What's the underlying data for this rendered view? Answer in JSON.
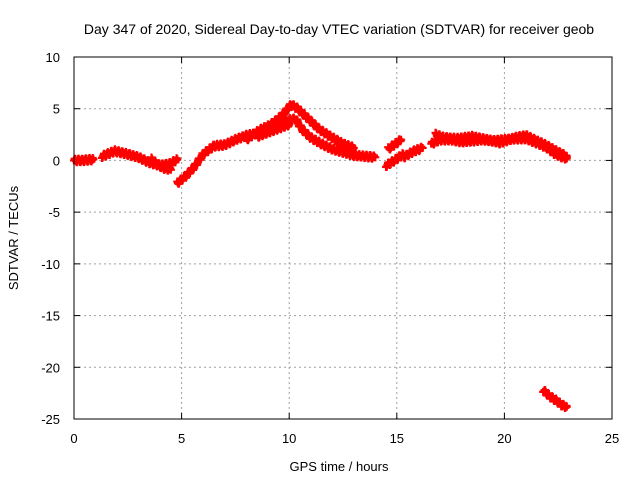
{
  "chart_data": {
    "type": "scatter",
    "title": "Day 347 of 2020, Sidereal Day-to-day VTEC variation (SDTVAR) for receiver geob",
    "xlabel": "GPS time / hours",
    "ylabel": "SDTVAR / TECUs",
    "xlim": [
      0,
      25
    ],
    "ylim": [
      -25,
      10
    ],
    "xticks": [
      0,
      5,
      10,
      15,
      20,
      25
    ],
    "yticks": [
      -25,
      -20,
      -15,
      -10,
      -5,
      0,
      5,
      10
    ],
    "grid": true,
    "marker_color": "#ff0000",
    "series": [
      {
        "name": "SDTVAR",
        "segments": [
          [
            [
              0.0,
              0.0
            ],
            [
              0.4,
              0.0
            ],
            [
              0.9,
              0.1
            ]
          ],
          [
            [
              1.3,
              0.4
            ],
            [
              1.9,
              0.9
            ],
            [
              2.5,
              0.6
            ],
            [
              3.0,
              0.3
            ],
            [
              3.5,
              -0.2
            ],
            [
              4.0,
              -0.5
            ],
            [
              4.5,
              -0.3
            ],
            [
              4.8,
              0.1
            ]
          ],
          [
            [
              3.6,
              0.1
            ],
            [
              4.1,
              -0.7
            ],
            [
              4.5,
              -0.9
            ]
          ],
          [
            [
              4.8,
              -2.2
            ],
            [
              5.2,
              -1.5
            ],
            [
              5.6,
              -0.6
            ],
            [
              6.0,
              0.6
            ],
            [
              6.5,
              1.4
            ],
            [
              7.0,
              1.5
            ],
            [
              7.5,
              2.0
            ],
            [
              8.0,
              2.4
            ],
            [
              8.5,
              2.6
            ],
            [
              9.0,
              3.0
            ],
            [
              9.5,
              3.5
            ],
            [
              10.0,
              3.9
            ],
            [
              10.3,
              4.0
            ],
            [
              10.6,
              3.0
            ],
            [
              11.0,
              2.2
            ],
            [
              11.5,
              1.6
            ],
            [
              12.0,
              1.1
            ],
            [
              12.5,
              0.8
            ],
            [
              13.0,
              0.5
            ],
            [
              13.5,
              0.4
            ],
            [
              14.0,
              0.3
            ]
          ],
          [
            [
              8.0,
              2.0
            ],
            [
              8.6,
              2.9
            ],
            [
              9.1,
              3.4
            ],
            [
              9.6,
              4.2
            ],
            [
              10.1,
              5.4
            ],
            [
              10.4,
              5.0
            ],
            [
              10.9,
              4.0
            ],
            [
              11.4,
              3.0
            ],
            [
              12.0,
              2.2
            ],
            [
              12.5,
              1.6
            ],
            [
              13.0,
              1.2
            ]
          ],
          [
            [
              8.5,
              2.3
            ],
            [
              9.0,
              2.7
            ],
            [
              9.5,
              3.1
            ],
            [
              10.0,
              3.5
            ]
          ],
          [
            [
              14.5,
              -0.5
            ],
            [
              14.9,
              0.0
            ],
            [
              15.3,
              0.6
            ]
          ],
          [
            [
              15.3,
              0.3
            ],
            [
              15.8,
              0.9
            ],
            [
              16.2,
              1.2
            ]
          ],
          [
            [
              14.6,
              1.1
            ],
            [
              15.0,
              1.7
            ],
            [
              15.2,
              2.0
            ]
          ],
          [
            [
              16.6,
              1.6
            ],
            [
              17.0,
              2.0
            ],
            [
              17.5,
              2.0
            ],
            [
              18.0,
              1.8
            ],
            [
              18.5,
              1.9
            ],
            [
              19.0,
              2.0
            ],
            [
              19.5,
              1.9
            ],
            [
              20.0,
              2.0
            ],
            [
              20.5,
              2.1
            ],
            [
              21.0,
              2.1
            ],
            [
              21.5,
              1.7
            ],
            [
              22.0,
              1.2
            ],
            [
              22.3,
              0.7
            ],
            [
              22.6,
              0.4
            ],
            [
              22.9,
              0.2
            ]
          ],
          [
            [
              16.8,
              2.5
            ],
            [
              17.2,
              2.2
            ],
            [
              17.8,
              2.1
            ],
            [
              18.5,
              2.3
            ],
            [
              19.2,
              2.0
            ],
            [
              19.8,
              1.7
            ],
            [
              20.5,
              2.2
            ],
            [
              21.0,
              2.4
            ],
            [
              21.5,
              1.9
            ],
            [
              22.0,
              1.4
            ],
            [
              22.5,
              0.8
            ],
            [
              22.9,
              0.4
            ]
          ],
          [
            [
              21.8,
              -22.2
            ],
            [
              22.1,
              -22.8
            ],
            [
              22.4,
              -23.2
            ],
            [
              22.7,
              -23.7
            ],
            [
              22.9,
              -23.8
            ]
          ]
        ]
      }
    ]
  }
}
